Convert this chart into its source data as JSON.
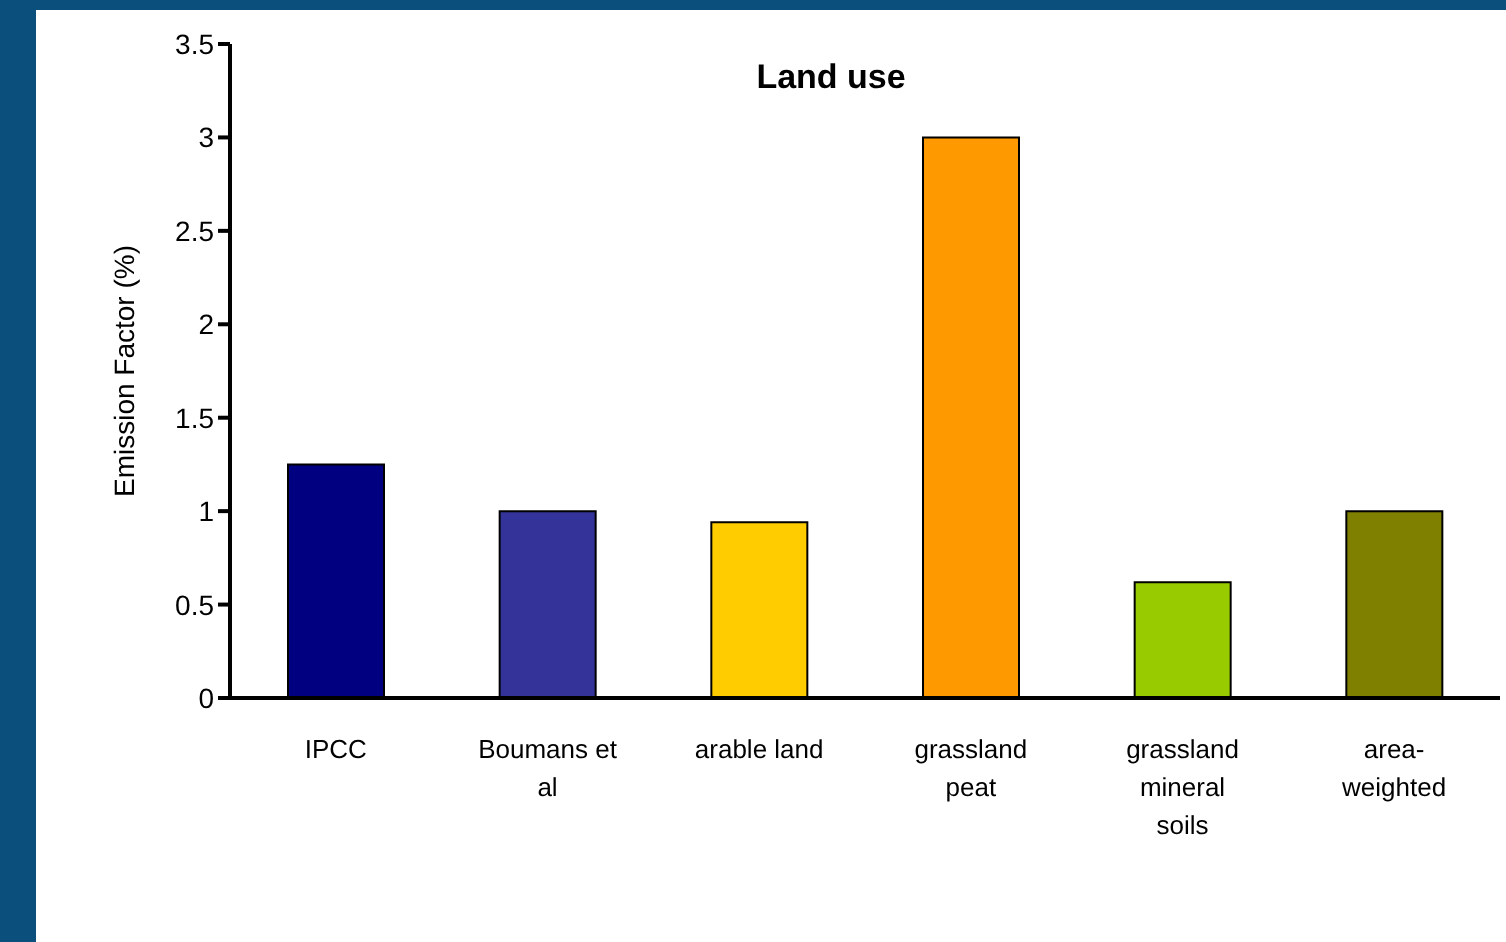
{
  "chart_data": {
    "type": "bar",
    "title": "Land use",
    "ylabel": "Emission Factor (%)",
    "categories": [
      "IPCC",
      "Boumans et al",
      "arable land",
      "grassland peat",
      "grassland mineral soils",
      "area-weighted"
    ],
    "values": [
      1.25,
      1.0,
      0.94,
      3.0,
      0.62,
      1.0
    ],
    "colors": [
      "#000080",
      "#333399",
      "#ffcc00",
      "#ff9900",
      "#99cc00",
      "#808000"
    ],
    "ylim": [
      0,
      3.5
    ],
    "yticks": [
      0,
      0.5,
      1,
      1.5,
      2,
      2.5,
      3,
      3.5
    ],
    "grid": false,
    "legend": false
  }
}
